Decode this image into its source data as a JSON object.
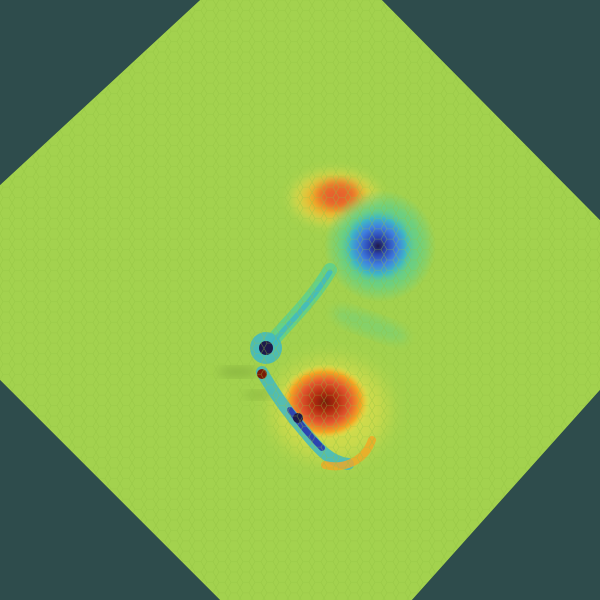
{
  "image": {
    "subject": "hexagonal-grid-heatmap",
    "colors": {
      "background": "#2e4c4c",
      "edge_shadow": "#163a3a",
      "field": "#a3d24e",
      "warm": [
        "#f2e24a",
        "#f5a623",
        "#e4572e",
        "#b22a10",
        "#7a1a08"
      ],
      "cool": [
        "#5fd08c",
        "#3fb8c4",
        "#3f7fe0",
        "#2c44b0",
        "#1e1a4a"
      ]
    }
  }
}
